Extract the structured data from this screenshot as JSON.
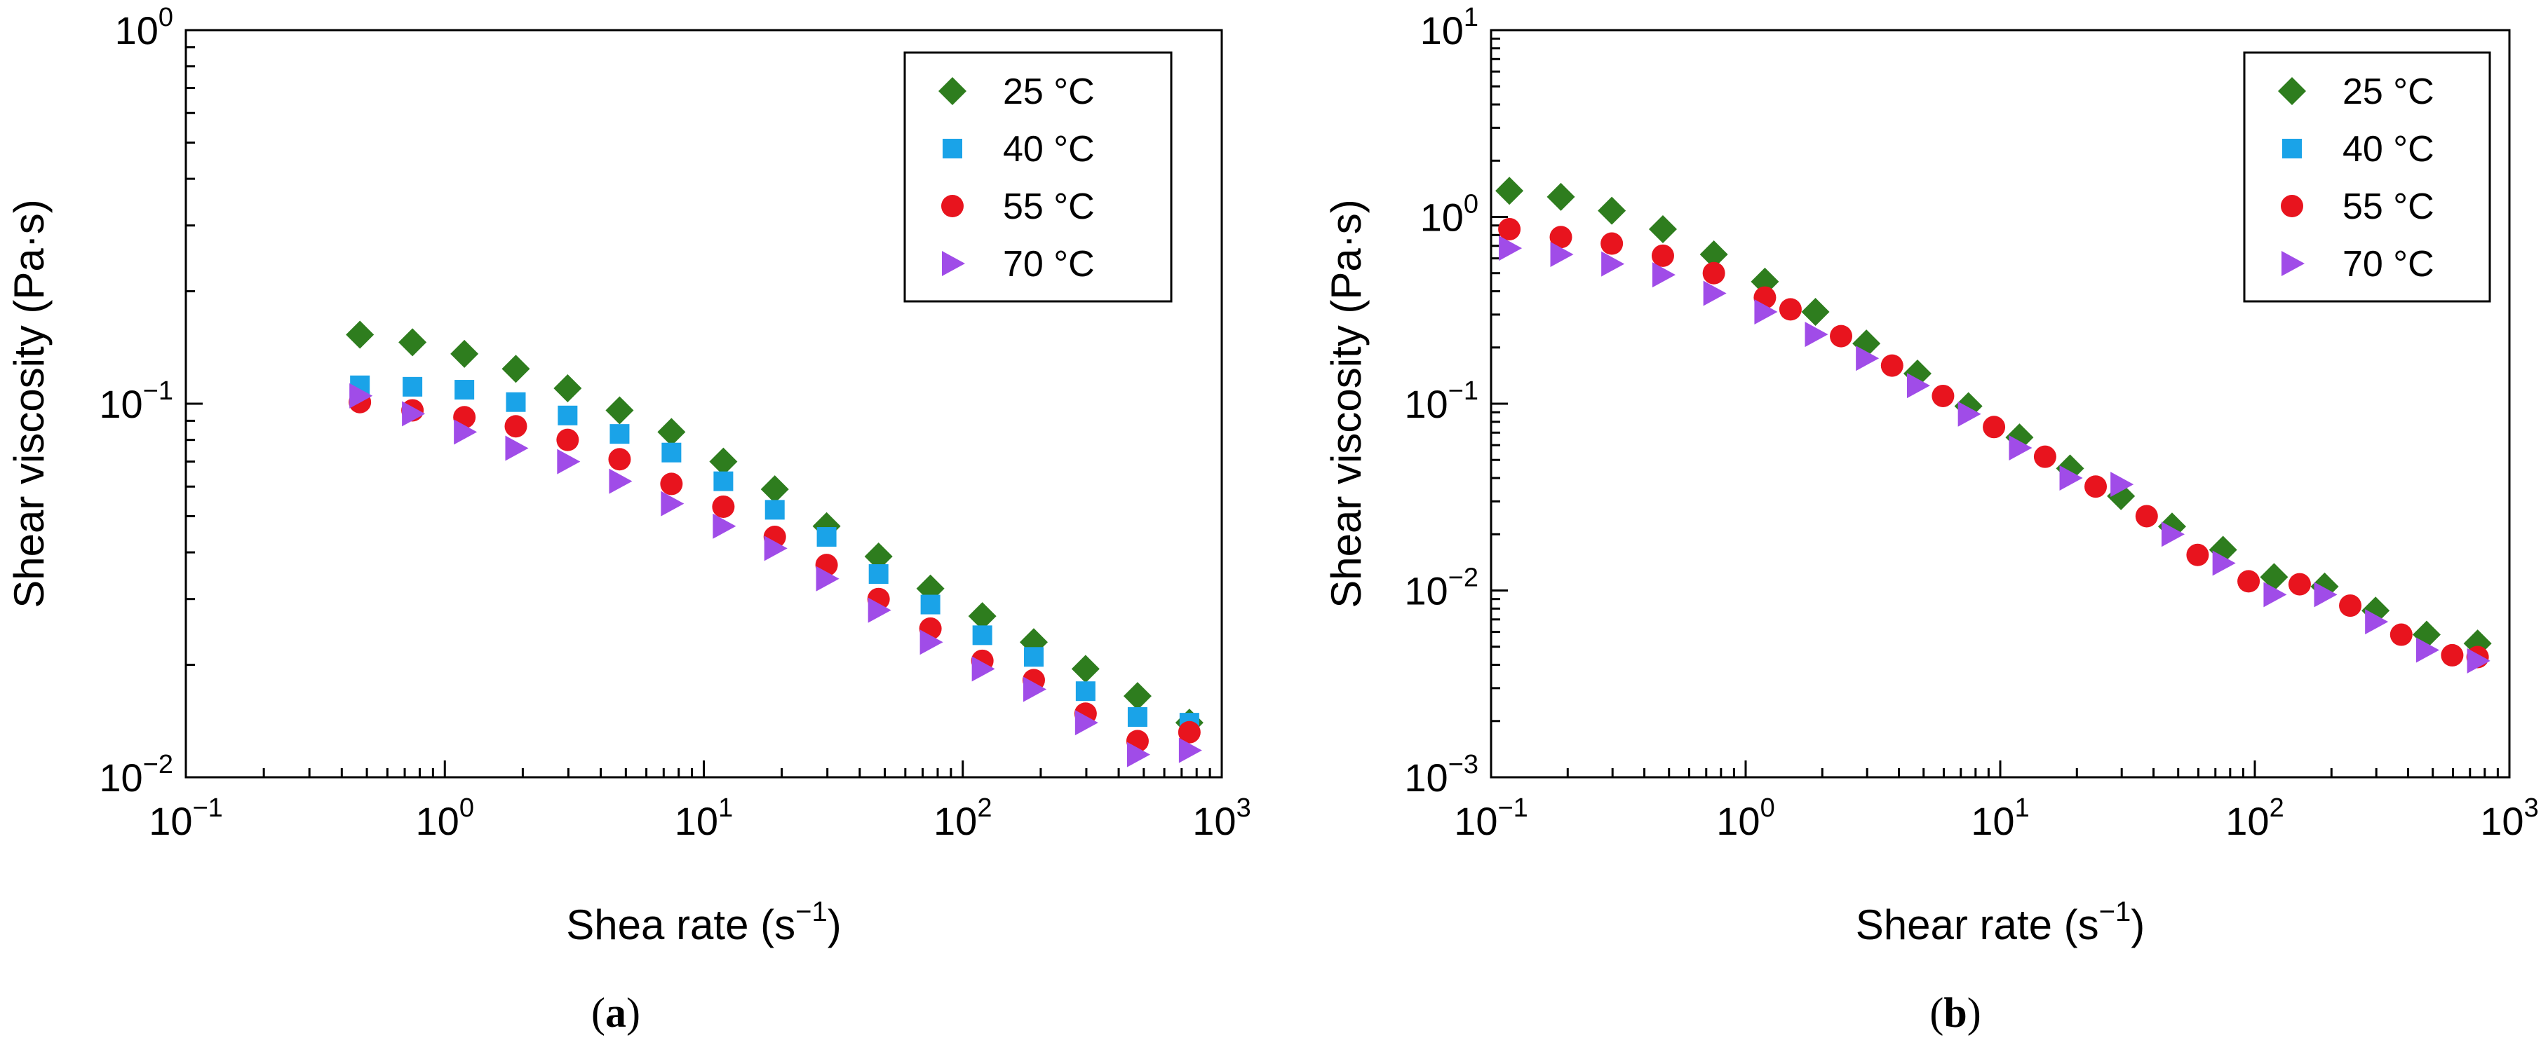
{
  "chart_data": [
    {
      "type": "scatter",
      "panel_label": "a",
      "xscale": "log",
      "yscale": "log",
      "xlim": [
        0.1,
        1000
      ],
      "ylim": [
        0.01,
        1
      ],
      "xlabel": "Shea rate (s",
      "xlabel_sup": "−1",
      "xlabel_end": ")",
      "ylabel": "Shear viscosity (Pa·s)",
      "x_ticks": [
        {
          "base": "10",
          "exp": "−1"
        },
        {
          "base": "10",
          "exp": "0"
        },
        {
          "base": "10",
          "exp": "1"
        },
        {
          "base": "10",
          "exp": "2"
        },
        {
          "base": "10",
          "exp": "3"
        }
      ],
      "y_ticks": [
        {
          "base": "10",
          "exp": "−2"
        },
        {
          "base": "10",
          "exp": "−1"
        },
        {
          "base": "10",
          "exp": "0"
        }
      ],
      "legend_position": "top-right",
      "series": [
        {
          "name": "25 °C",
          "marker": "diamond",
          "color": "#2E7D1E",
          "x": [
            0.47,
            0.75,
            1.19,
            1.88,
            2.98,
            4.73,
            7.5,
            11.9,
            18.8,
            29.8,
            47.3,
            75,
            119,
            188,
            298,
            473,
            750
          ],
          "y": [
            0.153,
            0.146,
            0.136,
            0.124,
            0.11,
            0.096,
            0.084,
            0.07,
            0.059,
            0.047,
            0.039,
            0.032,
            0.027,
            0.023,
            0.0195,
            0.0165,
            0.014
          ]
        },
        {
          "name": "40 °C",
          "marker": "square",
          "color": "#1AA3E8",
          "x": [
            0.47,
            0.75,
            1.19,
            1.88,
            2.98,
            4.73,
            7.5,
            11.9,
            18.8,
            29.8,
            47.3,
            75,
            119,
            188,
            298,
            473,
            750
          ],
          "y": [
            0.112,
            0.111,
            0.109,
            0.101,
            0.093,
            0.083,
            0.074,
            0.062,
            0.052,
            0.044,
            0.035,
            0.029,
            0.024,
            0.021,
            0.017,
            0.0145,
            0.014
          ]
        },
        {
          "name": "55 °C",
          "marker": "circle",
          "color": "#E8141E",
          "x": [
            0.47,
            0.75,
            1.19,
            1.88,
            2.98,
            4.73,
            7.5,
            11.9,
            18.8,
            29.8,
            47.3,
            75,
            119,
            188,
            298,
            473,
            750
          ],
          "y": [
            0.101,
            0.096,
            0.092,
            0.087,
            0.08,
            0.071,
            0.061,
            0.053,
            0.044,
            0.037,
            0.03,
            0.025,
            0.0205,
            0.0182,
            0.0148,
            0.0125,
            0.0132
          ]
        },
        {
          "name": "70 °C",
          "marker": "triangle-right",
          "color": "#A04CE8",
          "x": [
            0.47,
            0.75,
            1.19,
            1.88,
            2.98,
            4.73,
            7.5,
            11.9,
            18.8,
            29.8,
            47.3,
            75,
            119,
            188,
            298,
            473,
            750
          ],
          "y": [
            0.105,
            0.094,
            0.084,
            0.076,
            0.07,
            0.062,
            0.054,
            0.047,
            0.041,
            0.034,
            0.028,
            0.023,
            0.0195,
            0.0172,
            0.014,
            0.0115,
            0.0118
          ]
        }
      ]
    },
    {
      "type": "scatter",
      "panel_label": "b",
      "xscale": "log",
      "yscale": "log",
      "xlim": [
        0.1,
        1000
      ],
      "ylim": [
        0.001,
        10
      ],
      "xlabel": "Shear rate (s",
      "xlabel_sup": "−1",
      "xlabel_end": ")",
      "ylabel": "Shear viscosity (Pa·s)",
      "x_ticks": [
        {
          "base": "10",
          "exp": "−1"
        },
        {
          "base": "10",
          "exp": "0"
        },
        {
          "base": "10",
          "exp": "1"
        },
        {
          "base": "10",
          "exp": "2"
        },
        {
          "base": "10",
          "exp": "3"
        }
      ],
      "y_ticks": [
        {
          "base": "10",
          "exp": "−3"
        },
        {
          "base": "10",
          "exp": "−2"
        },
        {
          "base": "10",
          "exp": "−1"
        },
        {
          "base": "10",
          "exp": "0"
        },
        {
          "base": "10",
          "exp": "1"
        }
      ],
      "legend_position": "top-right",
      "series": [
        {
          "name": "25 °C",
          "marker": "diamond",
          "color": "#2E7D1E",
          "x": [
            0.118,
            0.188,
            0.298,
            0.473,
            0.75,
            1.19,
            1.88,
            2.98,
            4.73,
            7.5,
            11.9,
            18.8,
            29.8,
            47.3,
            75,
            119,
            188,
            298,
            473,
            750
          ],
          "y": [
            1.38,
            1.28,
            1.08,
            0.86,
            0.63,
            0.45,
            0.31,
            0.21,
            0.145,
            0.097,
            0.066,
            0.045,
            0.032,
            0.022,
            0.0165,
            0.0118,
            0.0105,
            0.0078,
            0.0058,
            0.0052
          ]
        },
        {
          "name": "40 °C",
          "marker": "square",
          "color": "#1AA3E8",
          "x": [],
          "y": []
        },
        {
          "name": "55 °C",
          "marker": "circle",
          "color": "#E8141E",
          "x": [
            0.118,
            0.188,
            0.298,
            0.473,
            0.75,
            1.19,
            1.5,
            2.37,
            3.76,
            5.96,
            9.45,
            15,
            23.7,
            37.6,
            59.6,
            94.5,
            150,
            237,
            376,
            596,
            750
          ],
          "y": [
            0.86,
            0.78,
            0.72,
            0.62,
            0.5,
            0.37,
            0.32,
            0.23,
            0.16,
            0.11,
            0.075,
            0.052,
            0.036,
            0.025,
            0.0155,
            0.0112,
            0.0108,
            0.0083,
            0.0058,
            0.0045,
            0.0044
          ]
        },
        {
          "name": "70 °C",
          "marker": "triangle-right",
          "color": "#A04CE8",
          "x": [
            0.118,
            0.188,
            0.298,
            0.473,
            0.75,
            1.19,
            1.88,
            2.98,
            4.73,
            7.5,
            11.9,
            18.8,
            29.8,
            47.3,
            75,
            119,
            188,
            298,
            473,
            750
          ],
          "y": [
            0.68,
            0.63,
            0.56,
            0.49,
            0.39,
            0.31,
            0.235,
            0.175,
            0.125,
            0.088,
            0.058,
            0.04,
            0.037,
            0.02,
            0.014,
            0.0095,
            0.0095,
            0.0068,
            0.0048,
            0.0042
          ]
        }
      ]
    }
  ]
}
